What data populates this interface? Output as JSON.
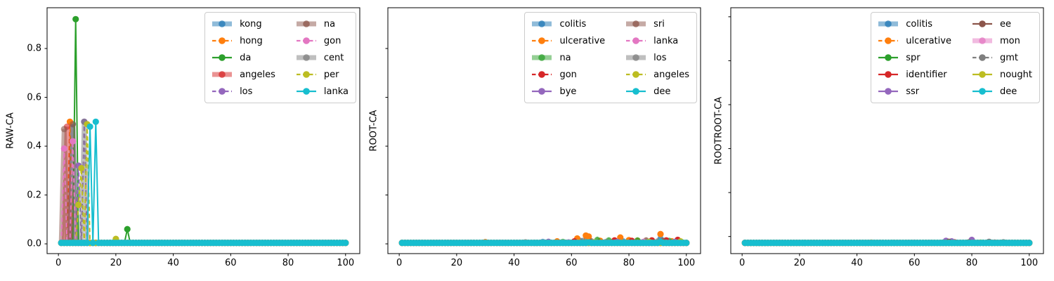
{
  "figure": {
    "background": "#ffffff"
  },
  "chart_data": [
    {
      "type": "line",
      "title": "",
      "xlabel": "",
      "ylabel": "RAW-CA",
      "xlim": [
        -3.95,
        104.95
      ],
      "ylim": [
        -0.04,
        0.967
      ],
      "x_range": [
        1,
        100
      ],
      "x_step": 1,
      "grid": false,
      "x_ticks": [
        0,
        20,
        40,
        60,
        80,
        100
      ],
      "y_ticks": {
        "values": [
          0.0,
          0.2,
          0.4,
          0.6,
          0.8
        ],
        "labels": [
          "0.0",
          "0.2",
          "0.4",
          "0.6",
          "0.8"
        ]
      },
      "legend": {
        "position": "upper right",
        "columns": 2
      },
      "series": [
        {
          "name": "kong",
          "color": "#1f77b4",
          "style": "thick",
          "marker": "o",
          "baseline": 0.004,
          "spikes": [
            [
              5,
              0.49
            ]
          ]
        },
        {
          "name": "hong",
          "color": "#ff7f0e",
          "style": "dashed",
          "marker": "o",
          "baseline": 0.004,
          "spikes": [
            [
              4,
              0.5
            ]
          ]
        },
        {
          "name": "da",
          "color": "#2ca02c",
          "style": "solid",
          "marker": "o",
          "baseline": 0.004,
          "spikes": [
            [
              6,
              0.92
            ],
            [
              24,
              0.06
            ]
          ]
        },
        {
          "name": "angeles",
          "color": "#d62728",
          "style": "thick",
          "marker": "o",
          "baseline": 0.004,
          "spikes": [
            [
              3,
              0.48
            ]
          ]
        },
        {
          "name": "los",
          "color": "#9467bd",
          "style": "dashed",
          "marker": "o",
          "baseline": 0.004,
          "spikes": [
            [
              7,
              0.32
            ],
            [
              9,
              0.5
            ]
          ]
        },
        {
          "name": "na",
          "color": "#8c564b",
          "style": "thick",
          "marker": "o",
          "baseline": 0.004,
          "spikes": [
            [
              2,
              0.47
            ],
            [
              5,
              0.49
            ]
          ]
        },
        {
          "name": "gon",
          "color": "#e377c2",
          "style": "dashed",
          "marker": "o",
          "baseline": 0.004,
          "spikes": [
            [
              2,
              0.39
            ],
            [
              5,
              0.42
            ]
          ]
        },
        {
          "name": "cent",
          "color": "#7f7f7f",
          "style": "thick",
          "marker": "o",
          "baseline": 0.004,
          "spikes": [
            [
              9,
              0.5
            ]
          ]
        },
        {
          "name": "per",
          "color": "#bcbd22",
          "style": "dashed",
          "marker": "o",
          "baseline": 0.004,
          "spikes": [
            [
              7,
              0.16
            ],
            [
              8,
              0.31
            ],
            [
              10,
              0.49
            ],
            [
              20,
              0.02
            ]
          ]
        },
        {
          "name": "lanka",
          "color": "#17becf",
          "style": "solid",
          "marker": "o",
          "baseline": 0.004,
          "spikes": [
            [
              11,
              0.48
            ],
            [
              13,
              0.5
            ]
          ]
        }
      ]
    },
    {
      "type": "line",
      "title": "",
      "xlabel": "",
      "ylabel": "ROOT-CA",
      "xlim": [
        -3.95,
        104.95
      ],
      "ylim": [
        -0.04,
        0.967
      ],
      "x_range": [
        1,
        100
      ],
      "x_step": 1,
      "grid": false,
      "x_ticks": [
        0,
        20,
        40,
        60,
        80,
        100
      ],
      "y_ticks": {
        "values": [
          0.0,
          0.2,
          0.4,
          0.6,
          0.8
        ],
        "labels": []
      },
      "legend": {
        "position": "upper right",
        "columns": 2
      },
      "series": [
        {
          "name": "colitis",
          "color": "#1f77b4",
          "style": "thick",
          "marker": "o",
          "baseline": 0.004,
          "spikes": [
            [
              50,
              0.008
            ],
            [
              63,
              0.012
            ],
            [
              66,
              0.02
            ],
            [
              78,
              0.01
            ],
            [
              91,
              0.022
            ]
          ]
        },
        {
          "name": "ulcerative",
          "color": "#ff7f0e",
          "style": "dashed",
          "marker": "o",
          "baseline": 0.004,
          "spikes": [
            [
              30,
              0.007
            ],
            [
              55,
              0.01
            ],
            [
              62,
              0.022
            ],
            [
              65,
              0.034
            ],
            [
              66,
              0.03
            ],
            [
              70,
              0.012
            ],
            [
              77,
              0.026
            ],
            [
              80,
              0.015
            ],
            [
              83,
              0.012
            ],
            [
              91,
              0.04
            ],
            [
              95,
              0.01
            ]
          ]
        },
        {
          "name": "na",
          "color": "#2ca02c",
          "style": "thick",
          "marker": "o",
          "baseline": 0.004,
          "spikes": [
            [
              57,
              0.008
            ],
            [
              69,
              0.016
            ],
            [
              73,
              0.014
            ],
            [
              83,
              0.014
            ],
            [
              94,
              0.012
            ]
          ]
        },
        {
          "name": "gon",
          "color": "#d62728",
          "style": "dashed",
          "marker": "o",
          "baseline": 0.004,
          "spikes": [
            [
              61,
              0.01
            ],
            [
              75,
              0.014
            ],
            [
              81,
              0.012
            ],
            [
              88,
              0.014
            ],
            [
              93,
              0.014
            ],
            [
              97,
              0.016
            ]
          ]
        },
        {
          "name": "bye",
          "color": "#9467bd",
          "style": "solid",
          "marker": "o",
          "baseline": 0.004,
          "spikes": [
            [
              52,
              0.008
            ],
            [
              76,
              0.008
            ],
            [
              96,
              0.008
            ]
          ]
        },
        {
          "name": "sri",
          "color": "#8c564b",
          "style": "thick",
          "marker": "o",
          "baseline": 0.004,
          "spikes": [
            [
              44,
              0.006
            ],
            [
              67,
              0.01
            ],
            [
              86,
              0.014
            ],
            [
              92,
              0.012
            ]
          ]
        },
        {
          "name": "lanka",
          "color": "#e377c2",
          "style": "dashed",
          "marker": "o",
          "baseline": 0.004,
          "spikes": [
            [
              59,
              0.006
            ],
            [
              85,
              0.008
            ]
          ]
        },
        {
          "name": "los",
          "color": "#7f7f7f",
          "style": "thick",
          "marker": "o",
          "baseline": 0.004,
          "spikes": [
            [
              64,
              0.012
            ],
            [
              72,
              0.008
            ],
            [
              90,
              0.01
            ]
          ]
        },
        {
          "name": "angeles",
          "color": "#bcbd22",
          "style": "dashed",
          "marker": "o",
          "baseline": 0.004,
          "spikes": [
            [
              68,
              0.006
            ],
            [
              87,
              0.008
            ],
            [
              98,
              0.01
            ]
          ]
        },
        {
          "name": "dee",
          "color": "#17becf",
          "style": "solid",
          "marker": "o",
          "baseline": 0.004,
          "spikes": [
            [
              66,
              0.006
            ],
            [
              91,
              0.008
            ]
          ]
        }
      ]
    },
    {
      "type": "line",
      "title": "",
      "xlabel": "",
      "ylabel": "ROOTROOT-CA",
      "xlim": [
        -3.95,
        104.95
      ],
      "ylim": [
        -0.04,
        0.967
      ],
      "x_range": [
        1,
        100
      ],
      "x_step": 1,
      "grid": false,
      "x_ticks": [
        0,
        20,
        40,
        60,
        80,
        100
      ],
      "y_ticks": {
        "values": [
          0.03,
          0.21,
          0.39,
          0.57,
          0.75,
          0.93
        ],
        "labels": []
      },
      "legend": {
        "position": "upper right",
        "columns": 2
      },
      "series": [
        {
          "name": "colitis",
          "color": "#1f77b4",
          "style": "thick",
          "marker": "o",
          "baseline": 0.004,
          "spikes": [
            [
              80,
              0.006
            ]
          ]
        },
        {
          "name": "ulcerative",
          "color": "#ff7f0e",
          "style": "dashed",
          "marker": "o",
          "baseline": 0.004,
          "spikes": [
            [
              45,
              0.005
            ],
            [
              72,
              0.005
            ]
          ]
        },
        {
          "name": "spr",
          "color": "#2ca02c",
          "style": "solid",
          "marker": "o",
          "baseline": 0.004,
          "spikes": [
            [
              70,
              0.005
            ]
          ]
        },
        {
          "name": "identifier",
          "color": "#d62728",
          "style": "solid",
          "marker": "o",
          "baseline": 0.004,
          "spikes": [
            [
              74,
              0.006
            ],
            [
              88,
              0.005
            ]
          ]
        },
        {
          "name": "ssr",
          "color": "#9467bd",
          "style": "solid",
          "marker": "o",
          "baseline": 0.004,
          "spikes": [
            [
              71,
              0.012
            ],
            [
              73,
              0.01
            ],
            [
              80,
              0.016
            ],
            [
              86,
              0.008
            ]
          ]
        },
        {
          "name": "ee",
          "color": "#8c564b",
          "style": "solid",
          "marker": "o",
          "baseline": 0.004,
          "spikes": [
            [
              72,
              0.008
            ],
            [
              79,
              0.006
            ]
          ]
        },
        {
          "name": "mon",
          "color": "#e377c2",
          "style": "thick",
          "marker": "o",
          "baseline": 0.004,
          "spikes": [
            [
              60,
              0.005
            ]
          ]
        },
        {
          "name": "gmt",
          "color": "#7f7f7f",
          "style": "dashed",
          "marker": "o",
          "baseline": 0.004,
          "spikes": [
            [
              86,
              0.008
            ],
            [
              91,
              0.006
            ]
          ]
        },
        {
          "name": "nought",
          "color": "#bcbd22",
          "style": "solid",
          "marker": "o",
          "baseline": 0.004,
          "spikes": [
            [
              50,
              0.004
            ],
            [
              83,
              0.005
            ]
          ]
        },
        {
          "name": "dee",
          "color": "#17becf",
          "style": "solid",
          "marker": "o",
          "baseline": 0.004,
          "spikes": [
            [
              95,
              0.004
            ]
          ]
        }
      ]
    }
  ]
}
